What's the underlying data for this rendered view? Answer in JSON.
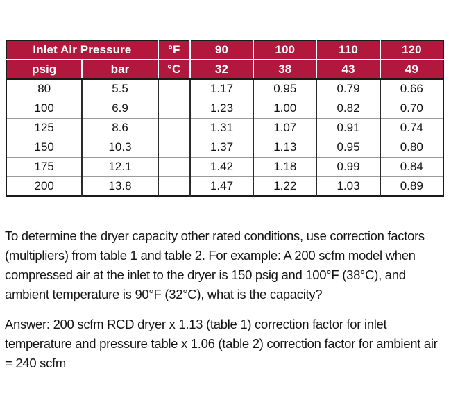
{
  "colors": {
    "header_bg": "#b2173e",
    "header_text": "#ffffff",
    "body_text": "#111111",
    "grid_dark": "#2b2b2b",
    "grid_light": "#9a9a9a"
  },
  "table": {
    "header": {
      "inlet_air_pressure": "Inlet Air Pressure",
      "psig_label": "psig",
      "bar_label": "bar",
      "deg_f_label": "°F",
      "deg_c_label": "°C",
      "temps_f": [
        "90",
        "100",
        "110",
        "120"
      ],
      "temps_c": [
        "32",
        "38",
        "43",
        "49"
      ]
    },
    "rows": [
      {
        "psig": "80",
        "bar": "5.5",
        "deg": "",
        "factors": [
          "1.17",
          "0.95",
          "0.79",
          "0.66"
        ]
      },
      {
        "psig": "100",
        "bar": "6.9",
        "deg": "",
        "factors": [
          "1.23",
          "1.00",
          "0.82",
          "0.70"
        ]
      },
      {
        "psig": "125",
        "bar": "8.6",
        "deg": "",
        "factors": [
          "1.31",
          "1.07",
          "0.91",
          "0.74"
        ]
      },
      {
        "psig": "150",
        "bar": "10.3",
        "deg": "",
        "factors": [
          "1.37",
          "1.13",
          "0.95",
          "0.80"
        ]
      },
      {
        "psig": "175",
        "bar": "12.1",
        "deg": "",
        "factors": [
          "1.42",
          "1.18",
          "0.99",
          "0.84"
        ]
      },
      {
        "psig": "200",
        "bar": "13.8",
        "deg": "",
        "factors": [
          "1.47",
          "1.22",
          "1.03",
          "0.89"
        ]
      }
    ]
  },
  "text": {
    "para1": [
      "To determine the dryer capacity other rated conditions, use correction factors",
      "(multipliers) from table 1 and table 2. For example: A 200 scfm model when",
      "compressed air at the inlet to the dryer is 150 psig and 100°F (38°C), and",
      "ambient temperature is 90°F (32°C), what is the capacity?"
    ],
    "para2": [
      "Answer: 200 scfm RCD dryer x 1.13 (table 1) correction factor for inlet",
      "temperature and pressure table x 1.06 (table 2) correction factor for ambient air",
      "= 240 scfm"
    ]
  }
}
